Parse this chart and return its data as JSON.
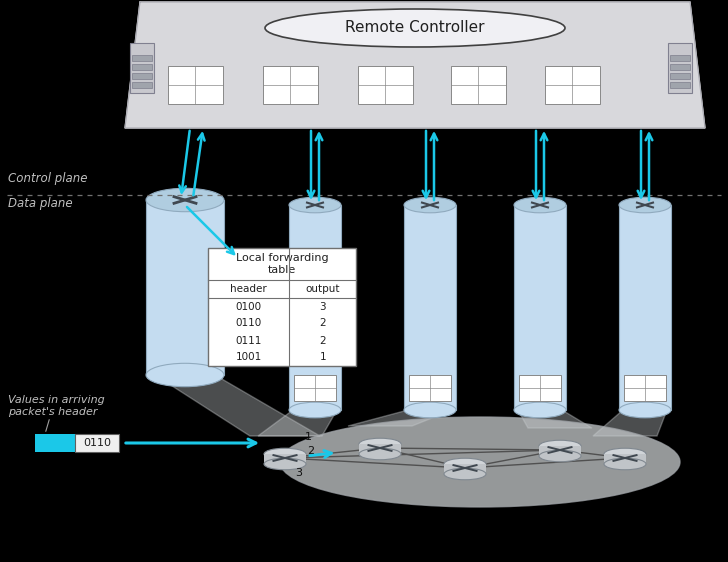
{
  "title": "Remote Controller",
  "control_plane_label": "Control plane",
  "data_plane_label": "Data plane",
  "table_title": "Local forwarding\ntable",
  "table_headers": [
    "header",
    "output"
  ],
  "table_rows": [
    [
      "0100",
      "3"
    ],
    [
      "0110",
      "2"
    ],
    [
      "0111",
      "2"
    ],
    [
      "1001",
      "1"
    ]
  ],
  "packet_label": "Values in arriving\npacket's header",
  "packet_value": "0110",
  "bg_color": "#000000",
  "cyan": "#1BC8E8",
  "shelf_fill": "#D8D8DC",
  "shelf_edge": "#A8A8B0",
  "cyl_body": "#C4DCF0",
  "cyl_top": "#B0CDE0",
  "cyl_edge": "#90AABE",
  "router_fill": "#C0C4C8",
  "router_edge": "#808890",
  "table_bg": "#FFFFFF",
  "table_edge": "#707070",
  "cloud_fill": "#C8CCCE",
  "cloud_edge": "#A0A4A8",
  "sep_color": "#707070",
  "label_color": "#C0C0C0",
  "text_color": "#202020",
  "arrow_color": "#1BC8E8",
  "ctrl_ellipse_fill": "#F0F0F4",
  "ctrl_ellipse_edge": "#404040"
}
